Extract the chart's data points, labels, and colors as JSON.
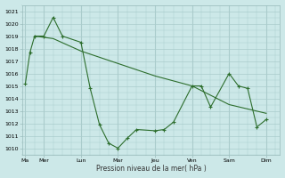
{
  "bg_color": "#cce8e8",
  "grid_color": "#aacccc",
  "line_color": "#2d6e2d",
  "xlabel": "Pression niveau de la mer( hPa )",
  "ylim_min": 1009.5,
  "ylim_max": 1021.5,
  "yticks": [
    1010,
    1011,
    1012,
    1013,
    1014,
    1015,
    1016,
    1017,
    1018,
    1019,
    1020,
    1021
  ],
  "day_positions": [
    0,
    2,
    6,
    10,
    14,
    18,
    22,
    26
  ],
  "day_labels": [
    "Ma",
    "Mer",
    "Lun",
    "Mar",
    "Jeu",
    "Ven",
    "Sam",
    "Dim"
  ],
  "xlim_min": -0.3,
  "xlim_max": 27.5,
  "zigzag_x": [
    0,
    0.5,
    1,
    2,
    3,
    4,
    6,
    7,
    8,
    9,
    10,
    11,
    12,
    14,
    15,
    16,
    18,
    19,
    20,
    22,
    23,
    24,
    25,
    26
  ],
  "zigzag_y": [
    1015.2,
    1017.7,
    1019.0,
    1019.0,
    1020.5,
    1019.0,
    1018.5,
    1014.8,
    1011.9,
    1010.4,
    1010.0,
    1010.8,
    1011.5,
    1011.4,
    1011.5,
    1012.1,
    1015.0,
    1015.0,
    1013.3,
    1016.0,
    1015.0,
    1014.8,
    1011.7,
    1012.3
  ],
  "trend_x": [
    1,
    3,
    6,
    10,
    14,
    18,
    22,
    26
  ],
  "trend_y": [
    1019.0,
    1018.8,
    1017.8,
    1016.8,
    1015.8,
    1015.0,
    1013.5,
    1012.8
  ]
}
